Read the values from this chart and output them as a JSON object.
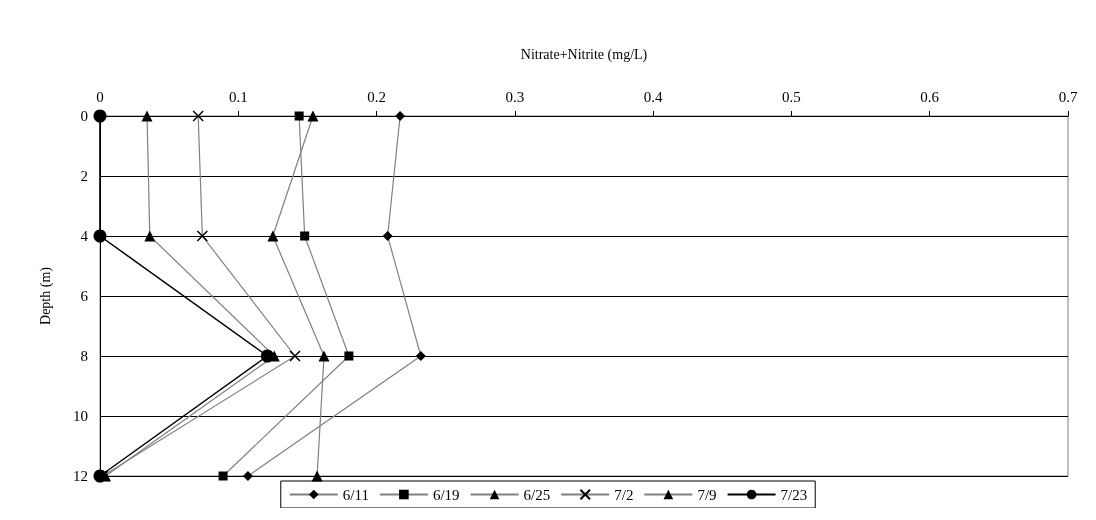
{
  "chart_data": {
    "type": "line",
    "xlabel": "Nitrate+Nitrite (mg/L)",
    "ylabel": "Depth (m)",
    "xlim": [
      0,
      0.7
    ],
    "xticks": [
      0,
      0.1,
      0.2,
      0.3,
      0.4,
      0.5,
      0.6,
      0.7
    ],
    "ylim": [
      12,
      0
    ],
    "yticks": [
      0,
      2,
      4,
      6,
      8,
      10,
      12
    ],
    "grid": "y",
    "legend": "bottom",
    "series": [
      {
        "name": "6/11",
        "color": "#808080",
        "marker": "diamond",
        "x": [
          0.217,
          0.208,
          0.232,
          0.107
        ],
        "values": [
          0,
          4,
          8,
          12
        ]
      },
      {
        "name": "6/19",
        "color": "#808080",
        "marker": "square",
        "x": [
          0.144,
          0.148,
          0.18,
          0.089
        ],
        "values": [
          0,
          4,
          8,
          12
        ]
      },
      {
        "name": "6/25",
        "color": "#808080",
        "marker": "triangle",
        "x": [
          0.154,
          0.125,
          0.162,
          0.157
        ],
        "values": [
          0,
          4,
          8,
          12
        ]
      },
      {
        "name": "7/2",
        "color": "#808080",
        "marker": "cross",
        "x": [
          0.071,
          0.074,
          0.141,
          0.002
        ],
        "values": [
          0,
          4,
          8,
          12
        ]
      },
      {
        "name": "7/9",
        "color": "#808080",
        "marker": "triangle",
        "x": [
          0.034,
          0.036,
          0.126,
          0.004
        ],
        "values": [
          0,
          4,
          8,
          12
        ]
      },
      {
        "name": "7/23",
        "color": "#000000",
        "marker": "circle",
        "x": [
          0,
          0,
          0.121,
          0
        ],
        "values": [
          0,
          4,
          8,
          12
        ]
      }
    ]
  }
}
